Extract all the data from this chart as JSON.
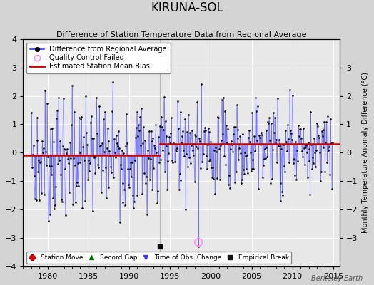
{
  "title": "KIRUNA-SOL",
  "subtitle": "Difference of Station Temperature Data from Regional Average",
  "ylabel_right": "Monthly Temperature Anomaly Difference (°C)",
  "xlim": [
    1977.0,
    2015.8
  ],
  "ylim": [
    -4,
    4
  ],
  "yticks_left": [
    -4,
    -3,
    -2,
    -1,
    0,
    1,
    2,
    3,
    4
  ],
  "yticks_right": [
    -3,
    -2,
    -1,
    0,
    1,
    2,
    3
  ],
  "xticks": [
    1980,
    1985,
    1990,
    1995,
    2000,
    2005,
    2010,
    2015
  ],
  "bias_before": -0.1,
  "bias_after": 0.3,
  "break_year": 1993.75,
  "empirical_break_x": 1993.75,
  "empirical_break_y": -3.3,
  "qc_fail_x": 1998.5,
  "qc_fail_y": -3.15,
  "qc_line_x": 1998.5,
  "vertical_line_x": 1993.75,
  "watermark": "Berkeley Earth",
  "background_color": "#d4d4d4",
  "plot_bg_color": "#e8e8e8",
  "line_color": "#3333ff",
  "dot_color": "#000000",
  "bias_color": "#cc0000",
  "qc_color": "#ff88ff",
  "empirical_color": "#111111",
  "seed": 7,
  "n_months": 444,
  "start_year": 1978.0,
  "break_idx": 190
}
